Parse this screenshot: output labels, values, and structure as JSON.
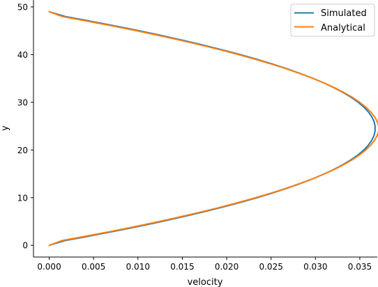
{
  "chart_data": {
    "type": "line",
    "title": "",
    "xlabel": "velocity",
    "ylabel": "y",
    "xlim": [
      -0.00177,
      0.03697
    ],
    "ylim": [
      -2.45,
      51.45
    ],
    "xticks": [
      0.0,
      0.005,
      0.01,
      0.015,
      0.02,
      0.025,
      0.03,
      0.035
    ],
    "xtick_labels": [
      "0.000",
      "0.005",
      "0.010",
      "0.015",
      "0.020",
      "0.025",
      "0.030",
      "0.035"
    ],
    "yticks": [
      0,
      10,
      20,
      30,
      40,
      50
    ],
    "ytick_labels": [
      "0",
      "10",
      "20",
      "30",
      "40",
      "50"
    ],
    "grid": false,
    "legend_position": "top-right",
    "series": [
      {
        "name": "Simulated",
        "color": "#1f77b4",
        "y": [
          0,
          1,
          2,
          3,
          4,
          5,
          6,
          7,
          8,
          9,
          10,
          11,
          12,
          13,
          14,
          15,
          16,
          17,
          18,
          19,
          20,
          21,
          22,
          23,
          24,
          25,
          26,
          27,
          28,
          29,
          30,
          31,
          32,
          33,
          34,
          35,
          36,
          37,
          38,
          39,
          40,
          41,
          42,
          43,
          44,
          45,
          46,
          47,
          48,
          49
        ],
        "x": [
          0.0,
          0.00177,
          0.00468,
          0.00747,
          0.01013,
          0.01267,
          0.01507,
          0.01735,
          0.0195,
          0.02153,
          0.02343,
          0.0252,
          0.02684,
          0.02836,
          0.02975,
          0.03102,
          0.03216,
          0.03317,
          0.03406,
          0.03482,
          0.03545,
          0.03596,
          0.03634,
          0.0366,
          0.03672,
          0.03672,
          0.0366,
          0.03634,
          0.03596,
          0.03545,
          0.03482,
          0.03406,
          0.03317,
          0.03216,
          0.03102,
          0.02975,
          0.02836,
          0.02684,
          0.0252,
          0.02343,
          0.02153,
          0.0195,
          0.01735,
          0.01507,
          0.01267,
          0.01013,
          0.00747,
          0.00468,
          0.00177,
          0.0
        ]
      },
      {
        "name": "Analytical",
        "color": "#ff7f0e",
        "y": [
          0,
          1,
          2,
          3,
          4,
          5,
          6,
          7,
          8,
          9,
          10,
          11,
          12,
          13,
          14,
          15,
          16,
          17,
          18,
          19,
          20,
          21,
          22,
          23,
          24,
          25,
          26,
          27,
          28,
          29,
          30,
          31,
          32,
          33,
          34,
          35,
          36,
          37,
          38,
          39,
          40,
          41,
          42,
          43,
          44,
          45,
          46,
          47,
          48,
          49
        ],
        "x": [
          0.0,
          0.00143,
          0.00435,
          0.00715,
          0.00983,
          0.01238,
          0.01481,
          0.01711,
          0.01929,
          0.02134,
          0.02327,
          0.02507,
          0.02675,
          0.0283,
          0.02973,
          0.03103,
          0.03221,
          0.03326,
          0.03419,
          0.03499,
          0.03567,
          0.03622,
          0.03665,
          0.03695,
          0.03713,
          0.03713,
          0.03695,
          0.03665,
          0.03622,
          0.03567,
          0.03499,
          0.03419,
          0.03326,
          0.03221,
          0.03103,
          0.02973,
          0.0283,
          0.02675,
          0.02507,
          0.02327,
          0.02134,
          0.01929,
          0.01711,
          0.01481,
          0.01238,
          0.00983,
          0.00715,
          0.00435,
          0.00143,
          0.0
        ]
      }
    ]
  }
}
